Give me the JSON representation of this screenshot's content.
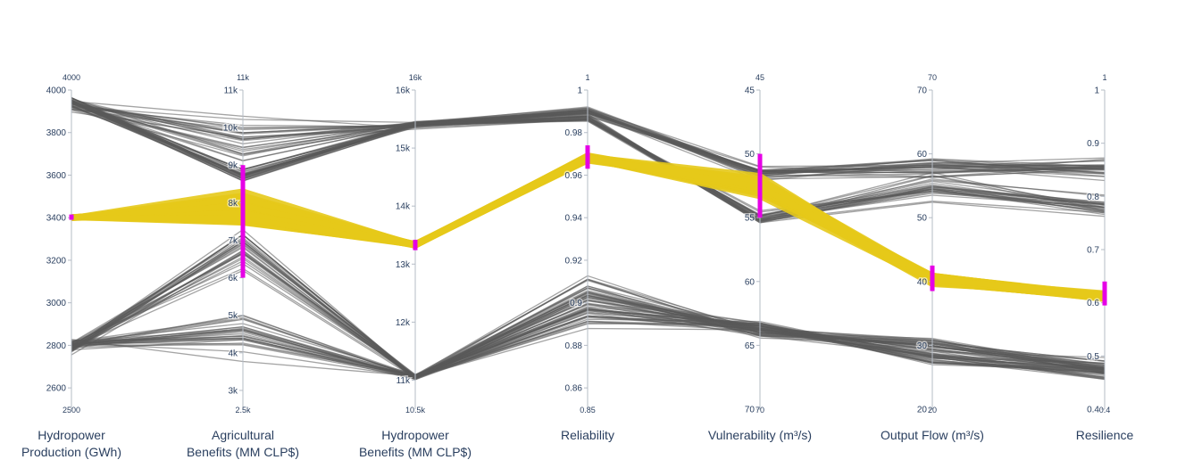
{
  "chart_data": {
    "type": "parallel_coordinates",
    "dimensions": [
      {
        "label_lines": [
          "Hydropower",
          "Production (GWh)"
        ],
        "range": [
          2500,
          4000
        ],
        "range_labels": [
          "2500",
          "4000"
        ],
        "ticks": [
          {
            "value": 2600,
            "label": "2600"
          },
          {
            "value": 2800,
            "label": "2800"
          },
          {
            "value": 3000,
            "label": "3000"
          },
          {
            "value": 3200,
            "label": "3200"
          },
          {
            "value": 3400,
            "label": "3400"
          },
          {
            "value": 3600,
            "label": "3600"
          },
          {
            "value": 3800,
            "label": "3800"
          },
          {
            "value": 4000,
            "label": "4000"
          }
        ],
        "reversed": false,
        "constraint": [
          3390,
          3415
        ]
      },
      {
        "label_lines": [
          "Agricultural",
          "Benefits (MM CLP$)"
        ],
        "range": [
          2500,
          11000
        ],
        "range_labels": [
          "2.5k",
          "11k"
        ],
        "ticks": [
          {
            "value": 3000,
            "label": "3k"
          },
          {
            "value": 4000,
            "label": "4k"
          },
          {
            "value": 5000,
            "label": "5k"
          },
          {
            "value": 6000,
            "label": "6k"
          },
          {
            "value": 7000,
            "label": "7k"
          },
          {
            "value": 8000,
            "label": "8k"
          },
          {
            "value": 9000,
            "label": "9k"
          },
          {
            "value": 10000,
            "label": "10k"
          },
          {
            "value": 11000,
            "label": "11k"
          }
        ],
        "reversed": false,
        "constraint": [
          6000,
          9000
        ]
      },
      {
        "label_lines": [
          "Hydropower",
          "Benefits (MM CLP$)"
        ],
        "range": [
          10500,
          16000
        ],
        "range_labels": [
          "10.5k",
          "16k"
        ],
        "ticks": [
          {
            "value": 11000,
            "label": "11k"
          },
          {
            "value": 12000,
            "label": "12k"
          },
          {
            "value": 13000,
            "label": "13k"
          },
          {
            "value": 14000,
            "label": "14k"
          },
          {
            "value": 15000,
            "label": "15k"
          },
          {
            "value": 16000,
            "label": "16k"
          }
        ],
        "reversed": false,
        "constraint": [
          13240,
          13420
        ]
      },
      {
        "label_lines": [
          "Reliability"
        ],
        "range": [
          0.85,
          1
        ],
        "range_labels": [
          "0.85",
          "1"
        ],
        "ticks": [
          {
            "value": 0.86,
            "label": "0.86"
          },
          {
            "value": 0.88,
            "label": "0.88"
          },
          {
            "value": 0.9,
            "label": "0.9"
          },
          {
            "value": 0.92,
            "label": "0.92"
          },
          {
            "value": 0.94,
            "label": "0.94"
          },
          {
            "value": 0.96,
            "label": "0.96"
          },
          {
            "value": 0.98,
            "label": "0.98"
          },
          {
            "value": 1,
            "label": "1"
          }
        ],
        "reversed": false,
        "constraint": [
          0.963,
          0.974
        ]
      },
      {
        "label_lines": [
          "Vulnerability (m³/s)"
        ],
        "range": [
          45,
          70
        ],
        "range_labels": [
          "70",
          "45"
        ],
        "ticks": [
          {
            "value": 45,
            "label": "45"
          },
          {
            "value": 50,
            "label": "50"
          },
          {
            "value": 55,
            "label": "55"
          },
          {
            "value": 60,
            "label": "60"
          },
          {
            "value": 65,
            "label": "65"
          },
          {
            "value": 70,
            "label": "70"
          }
        ],
        "reversed": true,
        "constraint": [
          50,
          55
        ]
      },
      {
        "label_lines": [
          "Output Flow (m³/s)"
        ],
        "range": [
          20,
          70
        ],
        "range_labels": [
          "20",
          "70"
        ],
        "ticks": [
          {
            "value": 20,
            "label": "20"
          },
          {
            "value": 30,
            "label": "30"
          },
          {
            "value": 40,
            "label": "40"
          },
          {
            "value": 50,
            "label": "50"
          },
          {
            "value": 60,
            "label": "60"
          },
          {
            "value": 70,
            "label": "70"
          }
        ],
        "reversed": false,
        "constraint": [
          38.5,
          42.5
        ]
      },
      {
        "label_lines": [
          "Resilience"
        ],
        "range": [
          0.4,
          1
        ],
        "range_labels": [
          "0.4",
          "1"
        ],
        "ticks": [
          {
            "value": 0.4,
            "label": "0.4"
          },
          {
            "value": 0.5,
            "label": "0.5"
          },
          {
            "value": 0.6,
            "label": "0.6"
          },
          {
            "value": 0.7,
            "label": "0.7"
          },
          {
            "value": 0.8,
            "label": "0.8"
          },
          {
            "value": 0.9,
            "label": "0.9"
          },
          {
            "value": 1,
            "label": "1"
          }
        ],
        "reversed": false,
        "constraint": [
          0.595,
          0.64
        ]
      }
    ],
    "line_clusters": [
      {
        "selected": false,
        "count": 32,
        "jitter": [
          40,
          300,
          80,
          0.003,
          0.8,
          2.5,
          0.025
        ],
        "center": [
          3950,
          8700,
          15400,
          0.99,
          51.5,
          58,
          0.85
        ]
      },
      {
        "selected": false,
        "count": 28,
        "jitter": [
          40,
          900,
          80,
          0.003,
          0.8,
          3,
          0.03
        ],
        "center": [
          3930,
          9800,
          15400,
          0.987,
          55,
          55,
          0.78
        ]
      },
      {
        "selected": false,
        "count": 30,
        "jitter": [
          40,
          900,
          60,
          0.01,
          0.6,
          2,
          0.02
        ],
        "center": [
          2790,
          6800,
          11050,
          0.895,
          63.5,
          28,
          0.47
        ]
      },
      {
        "selected": false,
        "count": 30,
        "jitter": [
          40,
          900,
          60,
          0.012,
          0.6,
          2,
          0.02
        ],
        "center": [
          2800,
          4500,
          11050,
          0.905,
          64,
          30,
          0.48
        ]
      },
      {
        "selected": true,
        "count": 55,
        "jitter": [
          5,
          600,
          30,
          0.002,
          1.0,
          0.9,
          0.009
        ],
        "center": [
          3400,
          7800,
          13330,
          0.968,
          52.5,
          40.3,
          0.612
        ]
      }
    ],
    "colors": {
      "selected": "#e6c919",
      "unselected": "#595959",
      "constraint": "#e600e6",
      "axis": "#b5bcc6",
      "text": "#2a3f5f"
    }
  }
}
